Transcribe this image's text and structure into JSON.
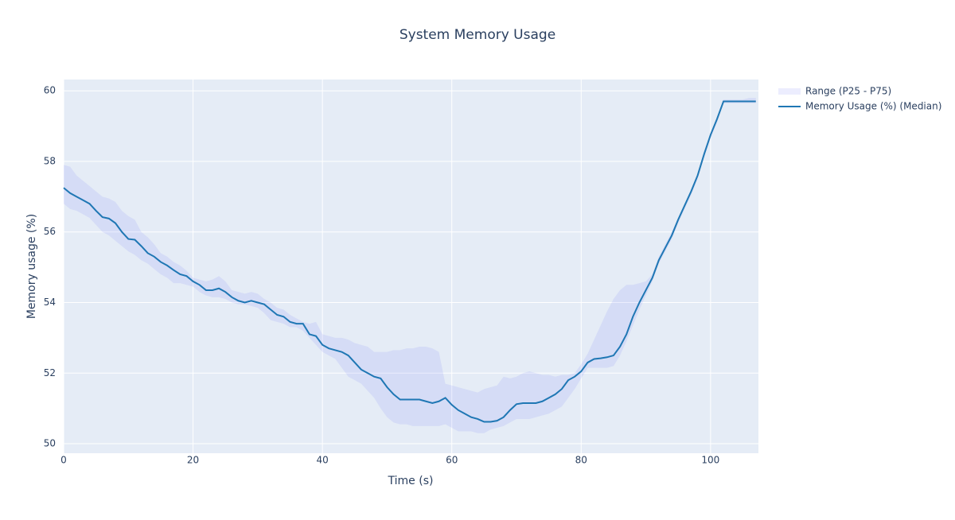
{
  "chart_data": {
    "type": "line",
    "title": "System Memory Usage",
    "x_label": "Time (s)",
    "y_label": "Memory usage (%)",
    "x": [
      0,
      1,
      2,
      3,
      4,
      5,
      6,
      7,
      8,
      9,
      10,
      11,
      12,
      13,
      14,
      15,
      16,
      17,
      18,
      19,
      20,
      21,
      22,
      23,
      24,
      25,
      26,
      27,
      28,
      29,
      30,
      31,
      32,
      33,
      34,
      35,
      36,
      37,
      38,
      39,
      40,
      41,
      42,
      43,
      44,
      45,
      46,
      47,
      48,
      49,
      50,
      51,
      52,
      53,
      54,
      55,
      56,
      57,
      58,
      59,
      60,
      61,
      62,
      63,
      64,
      65,
      66,
      67,
      68,
      69,
      70,
      71,
      72,
      73,
      74,
      75,
      76,
      77,
      78,
      79,
      80,
      81,
      82,
      83,
      84,
      85,
      86,
      87,
      88,
      89,
      90,
      91,
      92,
      93,
      94,
      95,
      96,
      97,
      98,
      99,
      100,
      101,
      102,
      103,
      104,
      105,
      106,
      107
    ],
    "series": [
      {
        "name": "Range (P25 - P75)",
        "color": "rgba(99,110,250,0.12)",
        "upper": [
          57.9,
          57.85,
          57.6,
          57.45,
          57.3,
          57.15,
          57.0,
          56.95,
          56.85,
          56.6,
          56.45,
          56.35,
          56.0,
          55.85,
          55.65,
          55.4,
          55.3,
          55.15,
          55.05,
          54.9,
          54.7,
          54.65,
          54.6,
          54.65,
          54.75,
          54.6,
          54.35,
          54.3,
          54.25,
          54.3,
          54.25,
          54.1,
          54.0,
          53.85,
          53.8,
          53.65,
          53.55,
          53.45,
          53.4,
          53.45,
          53.1,
          53.05,
          53.0,
          53.0,
          52.95,
          52.85,
          52.8,
          52.75,
          52.6,
          52.6,
          52.6,
          52.65,
          52.65,
          52.7,
          52.7,
          52.75,
          52.75,
          52.7,
          52.6,
          51.7,
          51.65,
          51.6,
          51.55,
          51.5,
          51.45,
          51.55,
          51.6,
          51.65,
          51.9,
          51.85,
          51.9,
          52.0,
          52.05,
          52.0,
          51.95,
          51.95,
          51.9,
          51.95,
          51.95,
          52.0,
          52.25,
          52.55,
          52.95,
          53.35,
          53.75,
          54.1,
          54.35,
          54.5,
          54.5,
          54.55,
          54.6,
          54.8,
          55.3,
          55.65,
          56.0,
          56.4,
          56.8,
          57.2,
          57.65,
          58.3,
          58.8,
          59.25,
          59.75,
          59.75,
          59.75,
          59.75,
          59.8,
          59.8
        ],
        "lower": [
          56.8,
          56.65,
          56.6,
          56.5,
          56.4,
          56.2,
          56.0,
          55.9,
          55.75,
          55.6,
          55.45,
          55.35,
          55.2,
          55.1,
          54.95,
          54.8,
          54.7,
          54.55,
          54.55,
          54.5,
          54.45,
          54.3,
          54.2,
          54.15,
          54.15,
          54.1,
          54.0,
          53.95,
          53.95,
          53.9,
          53.85,
          53.7,
          53.5,
          53.45,
          53.4,
          53.3,
          53.3,
          53.2,
          53.0,
          52.8,
          52.6,
          52.5,
          52.4,
          52.15,
          51.9,
          51.8,
          51.7,
          51.5,
          51.3,
          51.0,
          50.75,
          50.6,
          50.55,
          50.55,
          50.5,
          50.5,
          50.5,
          50.5,
          50.5,
          50.55,
          50.45,
          50.35,
          50.35,
          50.35,
          50.3,
          50.3,
          50.4,
          50.45,
          50.5,
          50.6,
          50.7,
          50.7,
          50.7,
          50.75,
          50.8,
          50.85,
          50.95,
          51.05,
          51.3,
          51.55,
          51.85,
          52.15,
          52.15,
          52.15,
          52.15,
          52.2,
          52.5,
          52.9,
          53.35,
          53.8,
          54.2,
          54.6,
          55.1,
          55.45,
          55.8,
          56.25,
          56.65,
          57.05,
          57.5,
          58.1,
          58.65,
          59.1,
          59.65,
          59.65,
          59.65,
          59.65,
          59.65,
          59.65
        ]
      },
      {
        "name": "Memory Usage (%) (Median)",
        "color": "#1f77b4",
        "values": [
          57.25,
          57.1,
          57.0,
          56.9,
          56.8,
          56.6,
          56.42,
          56.38,
          56.25,
          56.0,
          55.8,
          55.78,
          55.6,
          55.4,
          55.3,
          55.15,
          55.05,
          54.92,
          54.8,
          54.75,
          54.6,
          54.5,
          54.35,
          54.35,
          54.4,
          54.3,
          54.15,
          54.05,
          54.0,
          54.05,
          54.0,
          53.95,
          53.8,
          53.65,
          53.6,
          53.45,
          53.4,
          53.4,
          53.1,
          53.05,
          52.8,
          52.7,
          52.65,
          52.6,
          52.5,
          52.3,
          52.1,
          52.0,
          51.9,
          51.85,
          51.6,
          51.4,
          51.25,
          51.25,
          51.25,
          51.25,
          51.2,
          51.15,
          51.2,
          51.3,
          51.1,
          50.95,
          50.85,
          50.75,
          50.7,
          50.62,
          50.62,
          50.65,
          50.75,
          50.95,
          51.12,
          51.15,
          51.15,
          51.15,
          51.2,
          51.3,
          51.4,
          51.55,
          51.8,
          51.9,
          52.05,
          52.3,
          52.4,
          52.42,
          52.45,
          52.5,
          52.75,
          53.1,
          53.6,
          54.0,
          54.35,
          54.7,
          55.2,
          55.55,
          55.9,
          56.35,
          56.75,
          57.15,
          57.6,
          58.2,
          58.75,
          59.2,
          59.7,
          59.7,
          59.7,
          59.7,
          59.7,
          59.7
        ]
      }
    ],
    "xlim": [
      0,
      107.4
    ],
    "ylim": [
      49.73,
      60.32
    ],
    "xticks": [
      0,
      20,
      40,
      60,
      80,
      100
    ],
    "yticks": [
      50,
      52,
      54,
      56,
      58,
      60
    ],
    "grid": true
  }
}
